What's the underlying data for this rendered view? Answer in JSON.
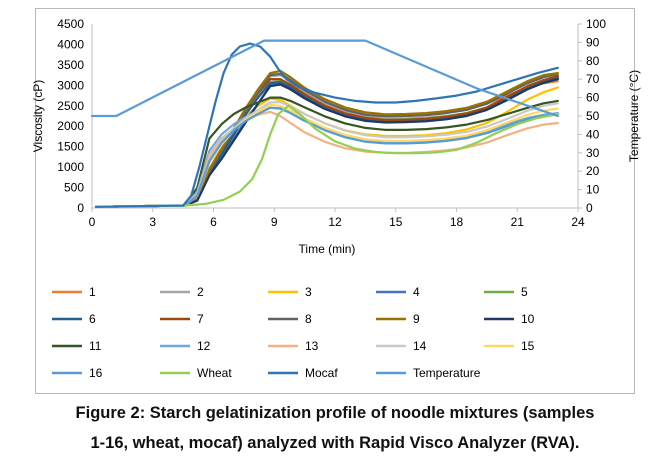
{
  "chart_data": {
    "type": "line",
    "xlabel": "Time (min)",
    "ylabel_left": "Viscosity (cP)",
    "ylabel_right": "Temperature (°C)",
    "xlim": [
      0,
      24
    ],
    "ylim_left": [
      0,
      4500
    ],
    "ylim_right": [
      0,
      100
    ],
    "x_ticks": [
      0,
      3,
      6,
      9,
      12,
      15,
      18,
      21,
      24
    ],
    "y_ticks_left": [
      0,
      500,
      1000,
      1500,
      2000,
      2500,
      3000,
      3500,
      4000,
      4500
    ],
    "y_ticks_right": [
      0,
      10,
      20,
      30,
      40,
      50,
      60,
      70,
      80,
      90,
      100
    ],
    "grid": false,
    "legend_position": "bottom",
    "series": [
      {
        "name": "1",
        "color": "#ed7d31",
        "axis": "left",
        "x": [
          0.2,
          4.6,
          5.2,
          5.8,
          6.4,
          7.0,
          7.6,
          8.2,
          8.8,
          9.3,
          9.8,
          10.5,
          11.5,
          12.5,
          13.5,
          14.5,
          15.5,
          16.5,
          17.5,
          18.5,
          19.5,
          20.5,
          21.5,
          22.3,
          23.0
        ],
        "y": [
          30,
          60,
          200,
          900,
          1400,
          1900,
          2400,
          2800,
          3150,
          3150,
          3020,
          2820,
          2580,
          2420,
          2320,
          2280,
          2290,
          2310,
          2360,
          2420,
          2550,
          2750,
          2950,
          3050,
          3100
        ]
      },
      {
        "name": "2",
        "color": "#a5a5a5",
        "axis": "left",
        "x": [
          0.2,
          4.6,
          5.2,
          5.8,
          6.4,
          7.0,
          7.6,
          8.2,
          8.8,
          9.3,
          9.8,
          10.5,
          11.5,
          12.5,
          13.5,
          14.5,
          15.5,
          16.5,
          17.5,
          18.5,
          19.5,
          20.5,
          21.5,
          22.3,
          23.0
        ],
        "y": [
          30,
          60,
          200,
          900,
          1400,
          1900,
          2400,
          2800,
          3220,
          3250,
          3100,
          2850,
          2550,
          2350,
          2230,
          2180,
          2190,
          2210,
          2250,
          2320,
          2450,
          2680,
          2950,
          3080,
          3150
        ]
      },
      {
        "name": "3",
        "color": "#ffc000",
        "axis": "left",
        "x": [
          0.2,
          4.6,
          5.2,
          5.8,
          6.4,
          7.0,
          7.6,
          8.2,
          8.8,
          9.3,
          9.8,
          10.5,
          11.5,
          12.5,
          13.5,
          14.5,
          15.5,
          16.5,
          17.5,
          18.5,
          19.5,
          20.5,
          21.5,
          22.3,
          23.0
        ],
        "y": [
          30,
          60,
          250,
          1100,
          1550,
          1950,
          2250,
          2500,
          2680,
          2640,
          2500,
          2300,
          2070,
          1900,
          1800,
          1760,
          1760,
          1780,
          1830,
          1920,
          2080,
          2350,
          2650,
          2830,
          2950
        ]
      },
      {
        "name": "4",
        "color": "#4472c4",
        "axis": "left",
        "x": [
          0.2,
          4.6,
          5.2,
          5.8,
          6.4,
          7.0,
          7.6,
          8.2,
          8.8,
          9.3,
          9.8,
          10.5,
          11.5,
          12.5,
          13.5,
          14.5,
          15.5,
          16.5,
          17.5,
          18.5,
          19.5,
          20.5,
          21.5,
          22.3,
          23.0
        ],
        "y": [
          30,
          60,
          200,
          800,
          1250,
          1700,
          2150,
          2550,
          3000,
          3050,
          2920,
          2700,
          2450,
          2280,
          2180,
          2140,
          2150,
          2170,
          2220,
          2300,
          2450,
          2700,
          2950,
          3100,
          3200
        ]
      },
      {
        "name": "5",
        "color": "#70ad47",
        "axis": "left",
        "x": [
          0.2,
          4.6,
          5.2,
          5.8,
          6.4,
          7.0,
          7.6,
          8.2,
          8.8,
          9.3,
          9.8,
          10.5,
          11.5,
          12.5,
          13.5,
          14.5,
          15.5,
          16.5,
          17.5,
          18.5,
          19.5,
          20.5,
          21.5,
          22.3,
          23.0
        ],
        "y": [
          30,
          60,
          200,
          800,
          1300,
          1800,
          2300,
          2700,
          3080,
          3100,
          2980,
          2740,
          2480,
          2300,
          2200,
          2160,
          2170,
          2190,
          2240,
          2320,
          2460,
          2700,
          2950,
          3100,
          3200
        ]
      },
      {
        "name": "6",
        "color": "#255e91",
        "axis": "left",
        "x": [
          0.2,
          4.6,
          5.2,
          5.8,
          6.4,
          7.0,
          7.6,
          8.2,
          8.8,
          9.3,
          9.8,
          10.5,
          11.5,
          12.5,
          13.5,
          14.5,
          15.5,
          16.5,
          17.5,
          18.5,
          19.5,
          20.5,
          21.5,
          22.3,
          23.0
        ],
        "y": [
          30,
          60,
          200,
          850,
          1300,
          1800,
          2300,
          2700,
          3050,
          3080,
          2950,
          2720,
          2450,
          2270,
          2160,
          2120,
          2130,
          2150,
          2200,
          2280,
          2420,
          2660,
          2920,
          3080,
          3180
        ]
      },
      {
        "name": "7",
        "color": "#9e480e",
        "axis": "left",
        "x": [
          0.2,
          4.6,
          5.2,
          5.8,
          6.4,
          7.0,
          7.6,
          8.2,
          8.8,
          9.3,
          9.8,
          10.5,
          11.5,
          12.5,
          13.5,
          14.5,
          15.5,
          16.5,
          17.5,
          18.5,
          19.5,
          20.5,
          21.5,
          22.3,
          23.0
        ],
        "y": [
          30,
          60,
          200,
          950,
          1450,
          1950,
          2400,
          2800,
          3150,
          3150,
          3010,
          2780,
          2500,
          2310,
          2200,
          2150,
          2160,
          2180,
          2230,
          2310,
          2460,
          2720,
          2980,
          3130,
          3230
        ]
      },
      {
        "name": "8",
        "color": "#636363",
        "axis": "left",
        "x": [
          0.2,
          4.6,
          5.2,
          5.8,
          6.4,
          7.0,
          7.6,
          8.2,
          8.8,
          9.3,
          9.8,
          10.5,
          11.5,
          12.5,
          13.5,
          14.5,
          15.5,
          16.5,
          17.5,
          18.5,
          19.5,
          20.5,
          21.5,
          22.3,
          23.0
        ],
        "y": [
          30,
          60,
          200,
          900,
          1400,
          1900,
          2400,
          2800,
          3250,
          3280,
          3130,
          2880,
          2600,
          2400,
          2280,
          2240,
          2250,
          2270,
          2320,
          2400,
          2550,
          2800,
          3050,
          3200,
          3280
        ]
      },
      {
        "name": "9",
        "color": "#997300",
        "axis": "left",
        "x": [
          0.2,
          4.6,
          5.2,
          5.8,
          6.4,
          7.0,
          7.6,
          8.2,
          8.8,
          9.3,
          9.8,
          10.5,
          11.5,
          12.5,
          13.5,
          14.5,
          15.5,
          16.5,
          17.5,
          18.5,
          19.5,
          20.5,
          21.5,
          22.3,
          23.0
        ],
        "y": [
          30,
          60,
          200,
          950,
          1450,
          1950,
          2450,
          2900,
          3300,
          3350,
          3200,
          2940,
          2660,
          2460,
          2340,
          2290,
          2300,
          2320,
          2370,
          2450,
          2600,
          2850,
          3100,
          3250,
          3300
        ]
      },
      {
        "name": "10",
        "color": "#203864",
        "axis": "left",
        "x": [
          0.2,
          4.6,
          5.2,
          5.8,
          6.4,
          7.0,
          7.6,
          8.2,
          8.8,
          9.3,
          9.8,
          10.5,
          11.5,
          12.5,
          13.5,
          14.5,
          15.5,
          16.5,
          17.5,
          18.5,
          19.5,
          20.5,
          21.5,
          22.3,
          23.0
        ],
        "y": [
          30,
          60,
          180,
          800,
          1200,
          1650,
          2100,
          2550,
          2980,
          3020,
          2900,
          2680,
          2420,
          2240,
          2130,
          2090,
          2100,
          2120,
          2170,
          2250,
          2400,
          2640,
          2900,
          3060,
          3150
        ]
      },
      {
        "name": "11",
        "color": "#375623",
        "axis": "left",
        "x": [
          0.2,
          4.6,
          5.2,
          5.8,
          6.4,
          7.0,
          7.6,
          8.2,
          8.8,
          9.3,
          9.8,
          10.5,
          11.5,
          12.5,
          13.5,
          14.5,
          15.5,
          16.5,
          17.5,
          18.5,
          19.5,
          20.5,
          21.5,
          22.3,
          23.0
        ],
        "y": [
          30,
          60,
          500,
          1700,
          2050,
          2300,
          2460,
          2580,
          2700,
          2700,
          2620,
          2460,
          2240,
          2070,
          1960,
          1910,
          1910,
          1930,
          1970,
          2040,
          2150,
          2300,
          2450,
          2560,
          2620
        ]
      },
      {
        "name": "12",
        "color": "#6fa8dc",
        "axis": "left",
        "x": [
          0.2,
          4.6,
          5.2,
          5.8,
          6.4,
          7.0,
          7.6,
          8.2,
          8.8,
          9.3,
          9.8,
          10.5,
          11.5,
          12.5,
          13.5,
          14.5,
          15.5,
          16.5,
          17.5,
          18.5,
          19.5,
          20.5,
          21.5,
          22.3,
          23.0
        ],
        "y": [
          30,
          60,
          400,
          1400,
          1800,
          2050,
          2230,
          2360,
          2450,
          2440,
          2340,
          2170,
          1950,
          1780,
          1670,
          1620,
          1620,
          1640,
          1680,
          1750,
          1880,
          2050,
          2200,
          2280,
          2320
        ]
      },
      {
        "name": "13",
        "color": "#f4b183",
        "axis": "left",
        "x": [
          0.2,
          4.6,
          5.2,
          5.8,
          6.4,
          7.0,
          7.6,
          8.2,
          8.8,
          9.3,
          9.8,
          10.5,
          11.5,
          12.5,
          13.5,
          14.5,
          15.5,
          16.5,
          17.5,
          18.5,
          19.5,
          20.5,
          21.5,
          22.3,
          23.0
        ],
        "y": [
          30,
          60,
          350,
          1300,
          1700,
          1950,
          2150,
          2280,
          2350,
          2250,
          2080,
          1850,
          1620,
          1460,
          1380,
          1350,
          1350,
          1370,
          1410,
          1480,
          1600,
          1780,
          1950,
          2040,
          2080
        ]
      },
      {
        "name": "14",
        "color": "#c9c9c9",
        "axis": "left",
        "x": [
          0.2,
          4.6,
          5.2,
          5.8,
          6.4,
          7.0,
          7.6,
          8.2,
          8.8,
          9.3,
          9.8,
          10.5,
          11.5,
          12.5,
          13.5,
          14.5,
          15.5,
          16.5,
          17.5,
          18.5,
          19.5,
          20.5,
          21.5,
          22.3,
          23.0
        ],
        "y": [
          30,
          60,
          300,
          1200,
          1650,
          1950,
          2200,
          2400,
          2580,
          2590,
          2480,
          2300,
          2070,
          1890,
          1780,
          1730,
          1730,
          1750,
          1790,
          1860,
          1990,
          2180,
          2380,
          2500,
          2560
        ]
      },
      {
        "name": "15",
        "color": "#ffd966",
        "axis": "left",
        "x": [
          0.2,
          4.6,
          5.2,
          5.8,
          6.4,
          7.0,
          7.6,
          8.2,
          8.8,
          9.3,
          9.8,
          10.5,
          11.5,
          12.5,
          13.5,
          14.5,
          15.5,
          16.5,
          17.5,
          18.5,
          19.5,
          20.5,
          21.5,
          22.3,
          23.0
        ],
        "y": [
          30,
          60,
          300,
          1100,
          1550,
          1900,
          2150,
          2350,
          2520,
          2500,
          2380,
          2190,
          1960,
          1790,
          1680,
          1640,
          1640,
          1660,
          1700,
          1770,
          1900,
          2090,
          2280,
          2380,
          2430
        ]
      },
      {
        "name": "16",
        "color": "#5b9bd5",
        "axis": "left",
        "x": [
          0.2,
          4.6,
          5.2,
          5.8,
          6.4,
          7.0,
          7.6,
          8.2,
          8.8,
          9.3,
          9.8,
          10.5,
          11.5,
          12.5,
          13.5,
          14.5,
          15.5,
          16.5,
          17.5,
          18.5,
          19.5,
          20.5,
          21.5,
          22.3,
          23.0
        ],
        "y": [
          30,
          60,
          300,
          1150,
          1600,
          1900,
          2130,
          2300,
          2450,
          2430,
          2320,
          2130,
          1900,
          1730,
          1620,
          1580,
          1580,
          1600,
          1640,
          1710,
          1830,
          2000,
          2170,
          2260,
          2300
        ]
      },
      {
        "name": "Wheat",
        "color": "#92d050",
        "axis": "left",
        "x": [
          0.2,
          4.6,
          5.6,
          6.5,
          7.3,
          7.9,
          8.4,
          8.8,
          9.2,
          9.7,
          10.3,
          11.0,
          12.0,
          13.0,
          14.0,
          15.0,
          16.0,
          17.0,
          18.0,
          19.0,
          20.0,
          21.0,
          22.0,
          23.0
        ],
        "y": [
          30,
          60,
          100,
          200,
          400,
          700,
          1200,
          1800,
          2300,
          2500,
          2280,
          1950,
          1630,
          1450,
          1370,
          1340,
          1340,
          1360,
          1420,
          1600,
          1840,
          2050,
          2200,
          2300
        ]
      },
      {
        "name": "Mocaf",
        "color": "#2e75b6",
        "axis": "left",
        "x": [
          0.2,
          4.5,
          4.9,
          5.3,
          5.7,
          6.1,
          6.5,
          6.9,
          7.3,
          7.8,
          8.3,
          8.8,
          9.2,
          9.6,
          10.2,
          11.0,
          12.0,
          13.0,
          14.0,
          15.0,
          16.0,
          17.0,
          18.0,
          19.0,
          20.0,
          21.0,
          22.0,
          23.0
        ],
        "y": [
          30,
          60,
          300,
          1000,
          1800,
          2600,
          3300,
          3750,
          3950,
          4020,
          3950,
          3700,
          3400,
          3150,
          2960,
          2820,
          2700,
          2620,
          2580,
          2580,
          2620,
          2680,
          2750,
          2850,
          3000,
          3150,
          3300,
          3430
        ]
      },
      {
        "name": "Temperature",
        "color": "#5b9bd5",
        "axis": "right",
        "x": [
          0.0,
          1.2,
          8.5,
          13.5,
          19.0,
          23.0
        ],
        "y": [
          50,
          50,
          91,
          91,
          65,
          50
        ]
      }
    ]
  },
  "figure": {
    "caption_line1": "Figure 2: Starch gelatinization profile of noodle mixtures (samples",
    "caption_line2": "1-16, wheat, mocaf) analyzed with Rapid Visco Analyzer (RVA)."
  }
}
